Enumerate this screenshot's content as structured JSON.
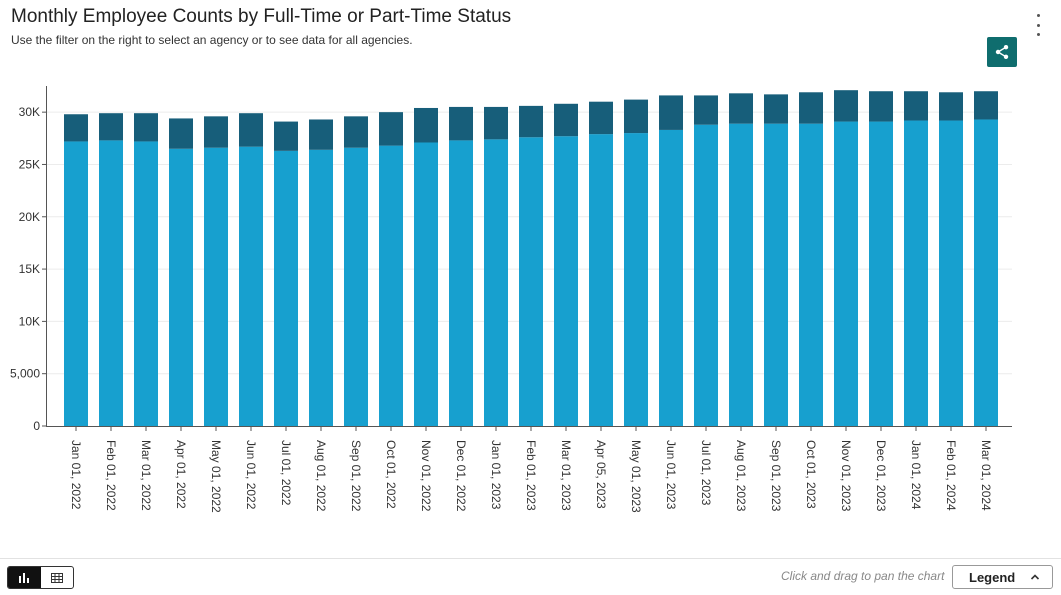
{
  "header": {
    "title": "Monthly Employee Counts by Full-Time or Part-Time Status",
    "subtitle": "Use the filter on the right to select an agency or to see data for all agencies."
  },
  "toolbar": {
    "menu_icon": "kebab-icon",
    "share_icon": "share-icon",
    "share_bg": "#0f6d6e"
  },
  "footer": {
    "hint": "Click and drag to pan the chart",
    "legend_label": "Legend",
    "chart_view_icon": "bar-chart-icon",
    "table_view_icon": "table-icon"
  },
  "chart_data": {
    "type": "bar",
    "stacked": true,
    "categories": [
      "Jan 01, 2022",
      "Feb 01, 2022",
      "Mar 01, 2022",
      "Apr 01, 2022",
      "May 01, 2022",
      "Jun 01, 2022",
      "Jul 01, 2022",
      "Aug 01, 2022",
      "Sep 01, 2022",
      "Oct 01, 2022",
      "Nov 01, 2022",
      "Dec 01, 2022",
      "Jan 01, 2023",
      "Feb 01, 2023",
      "Mar 01, 2023",
      "Apr 05, 2023",
      "May 01, 2023",
      "Jun 01, 2023",
      "Jul 01, 2023",
      "Aug 01, 2023",
      "Sep 01, 2023",
      "Oct 01, 2023",
      "Nov 01, 2023",
      "Dec 01, 2023",
      "Jan 01, 2024",
      "Feb 01, 2024",
      "Mar 01, 2024"
    ],
    "series": [
      {
        "color": "#17a0cf",
        "values": [
          27200,
          27300,
          27200,
          26500,
          26600,
          26700,
          26300,
          26400,
          26600,
          26800,
          27100,
          27300,
          27400,
          27600,
          27700,
          27900,
          28000,
          28300,
          28800,
          28900,
          28900,
          28900,
          29100,
          29100,
          29200,
          29200,
          29300
        ]
      },
      {
        "color": "#175e7a",
        "values": [
          2600,
          2600,
          2700,
          2900,
          3000,
          3200,
          2800,
          2900,
          3000,
          3200,
          3300,
          3200,
          3100,
          3000,
          3100,
          3100,
          3200,
          3300,
          2800,
          2900,
          2800,
          3000,
          3000,
          2900,
          2800,
          2700,
          2700
        ]
      }
    ],
    "yticks": [
      "0",
      "5,000",
      "10K",
      "15K",
      "20K",
      "25K",
      "30K"
    ],
    "ytick_values": [
      0,
      5000,
      10000,
      15000,
      20000,
      25000,
      30000
    ],
    "ylim": [
      0,
      32500
    ],
    "xlabel": "",
    "ylabel": "",
    "grid": true,
    "legend": "collapsed"
  }
}
